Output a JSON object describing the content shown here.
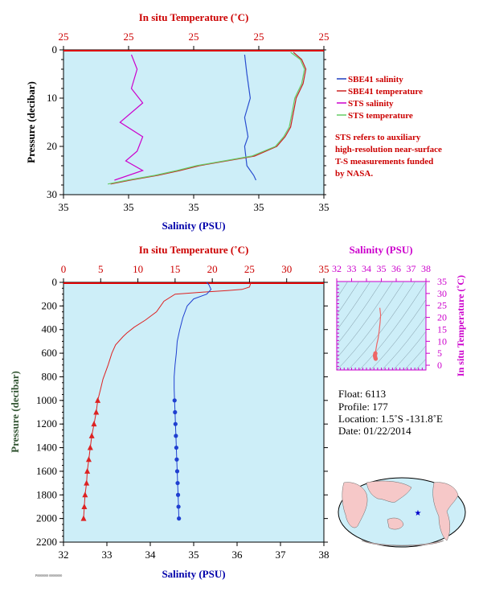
{
  "top_chart": {
    "top_axis_title": "In situ Temperature (˚C)",
    "top_ticks": [
      "25",
      "25",
      "25",
      "25",
      "25"
    ],
    "bottom_axis_title": "Salinity (PSU)",
    "bottom_ticks": [
      "35",
      "35",
      "35",
      "35",
      "35"
    ],
    "y_axis_title": "Pressure (decibar)",
    "y_ticks": [
      "0",
      "10",
      "20",
      "30"
    ]
  },
  "legend": {
    "items": [
      {
        "label": "SBE41 salinity",
        "color": "#1f3fbf"
      },
      {
        "label": "SBE41 temperature",
        "color": "#cc2222"
      },
      {
        "label": "STS salinity",
        "color": "#cc00cc"
      },
      {
        "label": "STS temperature",
        "color": "#66cc66"
      }
    ],
    "note": [
      "STS refers to auxiliary",
      "high-resolution near-surface",
      "T-S measurements funded",
      "by NASA."
    ]
  },
  "main_chart": {
    "top_axis_title": "In situ Temperature (˚C)",
    "top_ticks": [
      "0",
      "5",
      "10",
      "15",
      "20",
      "25",
      "30",
      "35"
    ],
    "bottom_axis_title": "Salinity (PSU)",
    "bottom_ticks": [
      "32",
      "33",
      "34",
      "35",
      "36",
      "37",
      "38"
    ],
    "y_axis_title": "Pressure (decibar)",
    "y_ticks": [
      "0",
      "200",
      "400",
      "600",
      "800",
      "1000",
      "1200",
      "1400",
      "1600",
      "1800",
      "2000",
      "2200"
    ]
  },
  "ts_chart": {
    "top_axis_title": "Salinity (PSU)",
    "top_ticks": [
      "32",
      "33",
      "34",
      "35",
      "36",
      "37",
      "38"
    ],
    "right_axis_title": "In situ Temperature (˚C)",
    "right_ticks": [
      "0",
      "5",
      "10",
      "15",
      "20",
      "25",
      "30",
      "35"
    ]
  },
  "float_info": {
    "float": "Float:  6113",
    "profile": "Profile:  177",
    "location": "Location:  1.5˚S  -131.8˚E",
    "date": "Date:  01/22/2014"
  },
  "footer_code": "P0000000 00000000",
  "chart_data": [
    {
      "type": "line",
      "title": "",
      "xlabel": "Salinity (PSU)",
      "x2label": "In situ Temperature (˚C)",
      "ylabel": "Pressure (decibar)",
      "ylim": [
        0,
        30
      ],
      "y_inverted": true,
      "grid": false,
      "series": [
        {
          "name": "SBE41 salinity",
          "axis": "salinity",
          "color": "#2a4fd0",
          "points": [
            [
              35.2,
              1
            ],
            [
              35.22,
              5
            ],
            [
              35.25,
              10
            ],
            [
              35.2,
              14
            ],
            [
              35.23,
              18
            ],
            [
              35.2,
              20
            ],
            [
              35.22,
              24
            ],
            [
              35.28,
              26
            ],
            [
              35.3,
              27
            ]
          ]
        },
        {
          "name": "SBE41 temperature",
          "axis": "temperature",
          "color": "#cc2222",
          "points": [
            [
              25.1,
              0.5
            ],
            [
              25.4,
              2
            ],
            [
              25.55,
              4
            ],
            [
              25.45,
              7
            ],
            [
              25.2,
              10
            ],
            [
              25.1,
              13
            ],
            [
              25.0,
              16
            ],
            [
              24.8,
              18
            ],
            [
              24.5,
              20
            ],
            [
              23.7,
              22
            ],
            [
              21.7,
              24
            ],
            [
              21.0,
              25
            ],
            [
              20.2,
              26
            ],
            [
              19.2,
              27
            ],
            [
              18.5,
              27.8
            ]
          ]
        },
        {
          "name": "STS salinity",
          "axis": "salinity",
          "color": "#cc00cc",
          "points": [
            [
              34.2,
              1
            ],
            [
              34.25,
              4
            ],
            [
              34.2,
              8
            ],
            [
              34.3,
              11
            ],
            [
              34.1,
              15
            ],
            [
              34.3,
              18
            ],
            [
              34.25,
              21
            ],
            [
              34.15,
              23
            ],
            [
              34.3,
              25
            ],
            [
              34.05,
              27
            ]
          ]
        },
        {
          "name": "STS temperature",
          "axis": "temperature",
          "color": "#66cc66",
          "points": [
            [
              25.0,
              0.5
            ],
            [
              25.35,
              2
            ],
            [
              25.5,
              4
            ],
            [
              25.4,
              7
            ],
            [
              25.15,
              10
            ],
            [
              25.05,
              13
            ],
            [
              24.95,
              16
            ],
            [
              24.75,
              18
            ],
            [
              24.45,
              20
            ],
            [
              23.6,
              22
            ],
            [
              21.6,
              24
            ],
            [
              20.9,
              25
            ],
            [
              20.1,
              26
            ],
            [
              19.1,
              27
            ],
            [
              18.4,
              27.8
            ]
          ]
        }
      ]
    },
    {
      "type": "line",
      "title": "",
      "xlabel": "Salinity (PSU)",
      "x2label": "In situ Temperature (˚C)",
      "ylabel": "Pressure (decibar)",
      "xlim": [
        32,
        38
      ],
      "x2lim": [
        0,
        35
      ],
      "ylim": [
        0,
        2200
      ],
      "y_inverted": true,
      "grid": false,
      "series": [
        {
          "name": "Temperature",
          "axis": "temperature",
          "color": "#dd2222",
          "points": [
            [
              25.2,
              0
            ],
            [
              25.0,
              40
            ],
            [
              24.0,
              60
            ],
            [
              22.0,
              70
            ],
            [
              19.5,
              80
            ],
            [
              15.0,
              100
            ],
            [
              13.5,
              160
            ],
            [
              12.5,
              250
            ],
            [
              11.0,
              320
            ],
            [
              9.5,
              380
            ],
            [
              8.5,
              430
            ],
            [
              8.0,
              460
            ],
            [
              7.0,
              530
            ],
            [
              6.5,
              600
            ],
            [
              6.0,
              700
            ],
            [
              5.3,
              820
            ],
            [
              5.0,
              900
            ],
            [
              4.6,
              1000
            ]
          ],
          "deep_points": [
            [
              4.6,
              1000
            ],
            [
              4.4,
              1100
            ],
            [
              4.1,
              1200
            ],
            [
              3.8,
              1300
            ],
            [
              3.6,
              1400
            ],
            [
              3.4,
              1500
            ],
            [
              3.2,
              1600
            ],
            [
              3.1,
              1700
            ],
            [
              2.9,
              1800
            ],
            [
              2.8,
              1900
            ],
            [
              2.7,
              2000
            ]
          ]
        },
        {
          "name": "Salinity",
          "axis": "salinity",
          "color": "#1f3fd0",
          "points": [
            [
              35.3,
              0
            ],
            [
              35.35,
              20
            ],
            [
              35.4,
              60
            ],
            [
              35.3,
              100
            ],
            [
              35.0,
              140
            ],
            [
              34.85,
              200
            ],
            [
              34.75,
              300
            ],
            [
              34.68,
              400
            ],
            [
              34.62,
              500
            ],
            [
              34.6,
              600
            ],
            [
              34.57,
              700
            ],
            [
              34.55,
              800
            ],
            [
              34.55,
              900
            ],
            [
              34.56,
              1000
            ]
          ],
          "deep_points": [
            [
              34.56,
              1000
            ],
            [
              34.57,
              1100
            ],
            [
              34.58,
              1200
            ],
            [
              34.59,
              1300
            ],
            [
              34.6,
              1400
            ],
            [
              34.61,
              1500
            ],
            [
              34.62,
              1600
            ],
            [
              34.63,
              1700
            ],
            [
              34.64,
              1800
            ],
            [
              34.65,
              1900
            ],
            [
              34.66,
              2000
            ]
          ]
        }
      ]
    },
    {
      "type": "scatter",
      "title": "",
      "xlabel": "Salinity (PSU)",
      "ylabel": "In situ Temperature (˚C)",
      "xlim": [
        32,
        38
      ],
      "ylim": [
        -2,
        35
      ],
      "points": [
        [
          34.9,
          24
        ],
        [
          34.95,
          21
        ],
        [
          34.92,
          18
        ],
        [
          34.85,
          14
        ],
        [
          34.78,
          11
        ],
        [
          34.7,
          9
        ],
        [
          34.65,
          7
        ],
        [
          34.62,
          6
        ],
        [
          34.6,
          5
        ],
        [
          34.58,
          4.5
        ],
        [
          34.57,
          4
        ],
        [
          34.58,
          3.5
        ],
        [
          34.6,
          3
        ],
        [
          34.62,
          2.7
        ]
      ],
      "color": "#ee6666"
    }
  ]
}
